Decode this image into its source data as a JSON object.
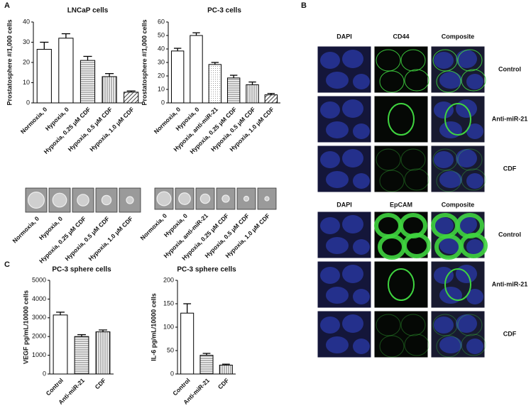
{
  "panel_labels": [
    "A",
    "B",
    "C"
  ],
  "chart_data": [
    {
      "type": "bar",
      "title": "LNCaP cells",
      "y_label": "Prostatosphere #/1,000 cells",
      "categories": [
        "Normoxia, 0",
        "Hypoxia, 0",
        "Hypoxia, 0.25 μM CDF",
        "Hypoxia, 0.5 μM CDF",
        "Hypoxia, 1.0 μM CDF"
      ],
      "values": [
        26.5,
        32,
        21,
        13,
        5.3
      ],
      "errors": [
        3.5,
        2.2,
        2,
        1.5,
        0.6
      ],
      "ylim": [
        0,
        40
      ],
      "yticks": [
        0,
        10,
        20,
        30,
        40
      ],
      "color": "#000000"
    },
    {
      "type": "bar",
      "title": "PC-3 cells",
      "y_label": "Prostatosphere #/1,000 cells",
      "categories": [
        "Normoxia, 0",
        "Hypoxia, 0",
        "Hypoxia, anti-miR-21",
        "Hypoxia, 0.25 μM CDF",
        "Hypoxia, 0.5 μM CDF",
        "Hypoxia, 1.0 μM CDF"
      ],
      "values": [
        38.5,
        50,
        28.5,
        18.5,
        13.5,
        6
      ],
      "errors": [
        2,
        2,
        1.5,
        2,
        2,
        1
      ],
      "ylim": [
        0,
        60
      ],
      "yticks": [
        0,
        10,
        20,
        30,
        40,
        50,
        60
      ],
      "color": "#000000"
    },
    {
      "type": "bar",
      "title": "PC-3 sphere cells",
      "y_label": "VEGF pg/mL/10000 cells",
      "categories": [
        "Control",
        "Anti-miR-21",
        "CDF"
      ],
      "values": [
        3150,
        2000,
        2250
      ],
      "errors": [
        150,
        100,
        100
      ],
      "ylim": [
        0,
        5000
      ],
      "yticks": [
        0,
        1000,
        2000,
        3000,
        4000,
        5000
      ],
      "color": "#000000"
    },
    {
      "type": "bar",
      "title": "PC-3 sphere cells",
      "y_label": "IL-6 pg/mL/10000 cells",
      "categories": [
        "Control",
        "Anti-miR-21",
        "CDF"
      ],
      "values": [
        130,
        40,
        19
      ],
      "errors": [
        20,
        4,
        2
      ],
      "ylim": [
        0,
        200
      ],
      "yticks": [
        0,
        50,
        100,
        150,
        200
      ],
      "color": "#000000"
    }
  ],
  "microscopy": [
    {
      "columns": [
        "DAPI",
        "CD44",
        "Composite"
      ],
      "rows": [
        "Control",
        "Anti-miR-21",
        "CDF"
      ]
    },
    {
      "columns": [
        "DAPI",
        "EpCAM",
        "Composite"
      ],
      "rows": [
        "Control",
        "Anti-miR-21",
        "CDF"
      ]
    }
  ]
}
